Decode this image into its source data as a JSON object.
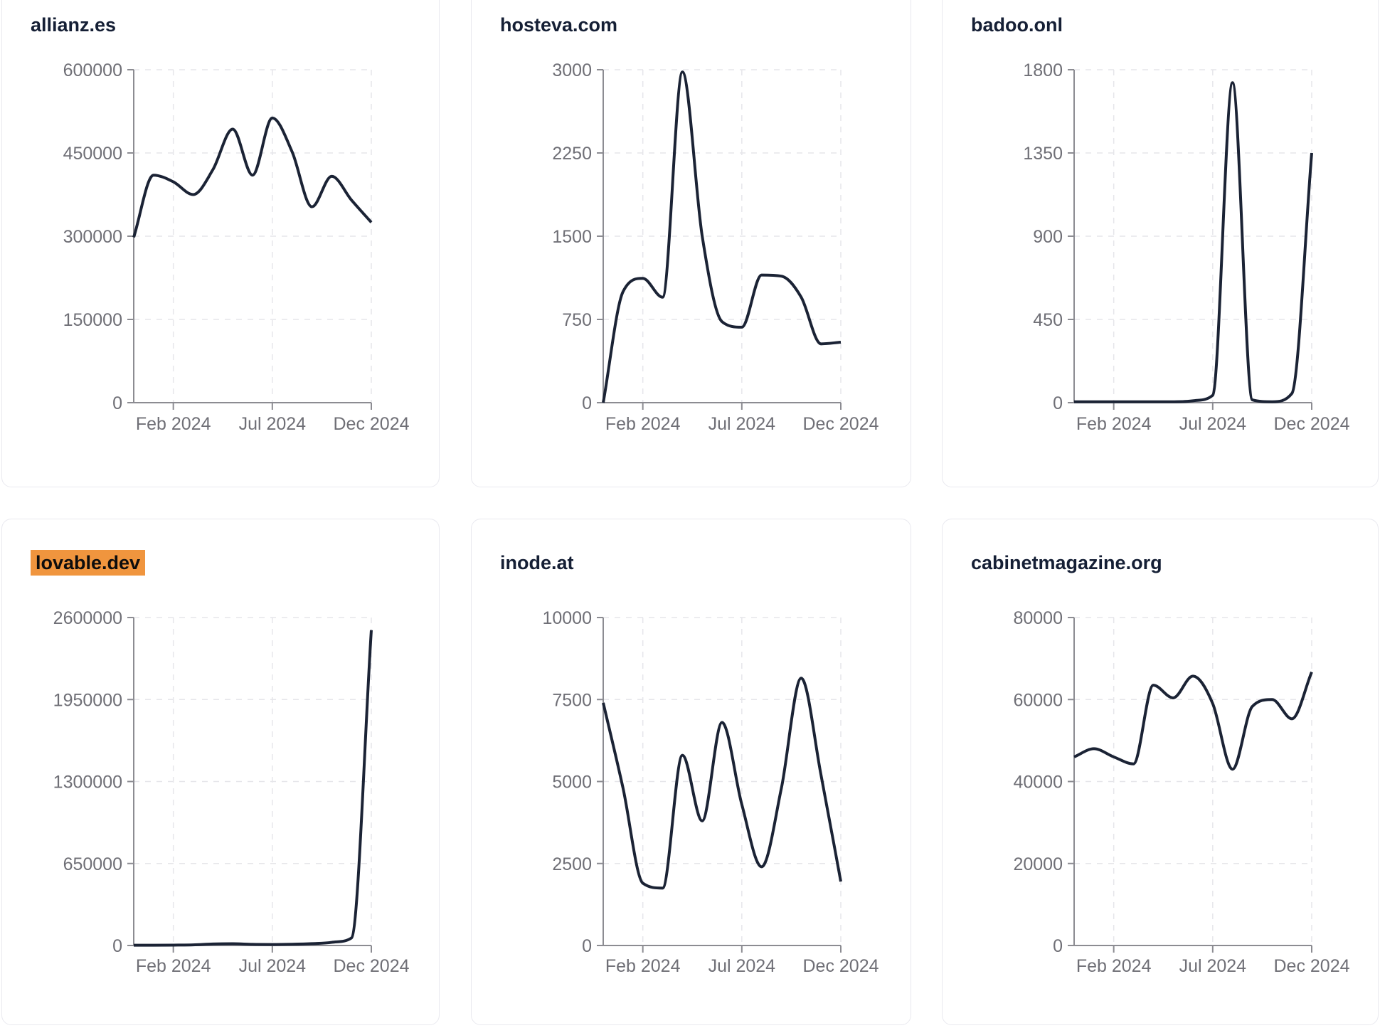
{
  "style": {
    "line_color": "#1b2335",
    "axis_color": "#8c8c92",
    "grid_color": "#e6e6ea",
    "tick_label_color": "#6f6f76",
    "title_color": "#151f35",
    "highlight_color": "#f0953e",
    "card_border_color": "#e9e9ef",
    "card_background": "#ffffff"
  },
  "months": [
    "Dec 2023",
    "Jan 2024",
    "Feb 2024",
    "Mar 2024",
    "Apr 2024",
    "May 2024",
    "Jun 2024",
    "Jul 2024",
    "Aug 2024",
    "Sep 2024",
    "Oct 2024",
    "Nov 2024",
    "Dec 2024"
  ],
  "xticks": [
    {
      "label": "Feb 2024",
      "month_index": 2
    },
    {
      "label": "Jul 2024",
      "month_index": 7
    },
    {
      "label": "Dec 2024",
      "month_index": 12
    }
  ],
  "chart_data": [
    {
      "type": "line",
      "title": "allianz.es",
      "title_highlighted": false,
      "x": [
        "Dec 2023",
        "Jan 2024",
        "Feb 2024",
        "Mar 2024",
        "Apr 2024",
        "May 2024",
        "Jun 2024",
        "Jul 2024",
        "Aug 2024",
        "Sep 2024",
        "Oct 2024",
        "Nov 2024",
        "Dec 2024"
      ],
      "values": [
        298000,
        410000,
        398000,
        375000,
        420000,
        493000,
        410000,
        513000,
        452000,
        353000,
        408000,
        365000,
        325000
      ],
      "ylim": [
        0,
        600000
      ],
      "yticks": [
        0,
        150000,
        300000,
        450000,
        600000
      ],
      "xtick_labels": [
        "Feb 2024",
        "Jul 2024",
        "Dec 2024"
      ],
      "grid": true,
      "legend": false
    },
    {
      "type": "line",
      "title": "hosteva.com",
      "title_highlighted": false,
      "x": [
        "Dec 2023",
        "Jan 2024",
        "Feb 2024",
        "Mar 2024",
        "Apr 2024",
        "May 2024",
        "Jun 2024",
        "Jul 2024",
        "Aug 2024",
        "Sep 2024",
        "Oct 2024",
        "Nov 2024",
        "Dec 2024"
      ],
      "values": [
        0,
        1000,
        1120,
        950,
        2980,
        1500,
        730,
        680,
        1150,
        1140,
        950,
        530,
        545
      ],
      "ylim": [
        0,
        3000
      ],
      "yticks": [
        0,
        750,
        1500,
        2250,
        3000
      ],
      "xtick_labels": [
        "Feb 2024",
        "Jul 2024",
        "Dec 2024"
      ],
      "grid": true,
      "legend": false
    },
    {
      "type": "line",
      "title": "badoo.onl",
      "title_highlighted": false,
      "x": [
        "Dec 2023",
        "Jan 2024",
        "Feb 2024",
        "Mar 2024",
        "Apr 2024",
        "May 2024",
        "Jun 2024",
        "Jul 2024",
        "Aug 2024",
        "Sep 2024",
        "Oct 2024",
        "Nov 2024",
        "Dec 2024"
      ],
      "values": [
        5,
        5,
        5,
        5,
        5,
        5,
        10,
        40,
        1730,
        15,
        5,
        50,
        1350
      ],
      "ylim": [
        0,
        1800
      ],
      "yticks": [
        0,
        450,
        900,
        1350,
        1800
      ],
      "xtick_labels": [
        "Feb 2024",
        "Jul 2024",
        "Dec 2024"
      ],
      "grid": true,
      "legend": false
    },
    {
      "type": "line",
      "title": "lovable.dev",
      "title_highlighted": true,
      "x": [
        "Dec 2023",
        "Jan 2024",
        "Feb 2024",
        "Mar 2024",
        "Apr 2024",
        "May 2024",
        "Jun 2024",
        "Jul 2024",
        "Aug 2024",
        "Sep 2024",
        "Oct 2024",
        "Nov 2024",
        "Dec 2024"
      ],
      "values": [
        2000,
        2000,
        3000,
        5000,
        12000,
        14000,
        9000,
        8000,
        10000,
        15000,
        25000,
        60000,
        2500000
      ],
      "ylim": [
        0,
        2600000
      ],
      "yticks": [
        0,
        650000,
        1300000,
        1950000,
        2600000
      ],
      "xtick_labels": [
        "Feb 2024",
        "Jul 2024",
        "Dec 2024"
      ],
      "grid": true,
      "legend": false
    },
    {
      "type": "line",
      "title": "inode.at",
      "title_highlighted": false,
      "x": [
        "Dec 2023",
        "Jan 2024",
        "Feb 2024",
        "Mar 2024",
        "Apr 2024",
        "May 2024",
        "Jun 2024",
        "Jul 2024",
        "Aug 2024",
        "Sep 2024",
        "Oct 2024",
        "Nov 2024",
        "Dec 2024"
      ],
      "values": [
        7400,
        4800,
        1900,
        1750,
        5800,
        3800,
        6800,
        4300,
        2400,
        4800,
        8150,
        5200,
        1950
      ],
      "ylim": [
        0,
        10000
      ],
      "yticks": [
        0,
        2500,
        5000,
        7500,
        10000
      ],
      "xtick_labels": [
        "Feb 2024",
        "Jul 2024",
        "Dec 2024"
      ],
      "grid": true,
      "legend": false
    },
    {
      "type": "line",
      "title": "cabinetmagazine.org",
      "title_highlighted": false,
      "x": [
        "Dec 2023",
        "Jan 2024",
        "Feb 2024",
        "Mar 2024",
        "Apr 2024",
        "May 2024",
        "Jun 2024",
        "Jul 2024",
        "Aug 2024",
        "Sep 2024",
        "Oct 2024",
        "Nov 2024",
        "Dec 2024"
      ],
      "values": [
        46000,
        48000,
        46000,
        44300,
        63500,
        60400,
        65700,
        59000,
        43000,
        58300,
        60000,
        55300,
        66700
      ],
      "ylim": [
        0,
        80000
      ],
      "yticks": [
        0,
        20000,
        40000,
        60000,
        80000
      ],
      "xtick_labels": [
        "Feb 2024",
        "Jul 2024",
        "Dec 2024"
      ],
      "grid": true,
      "legend": false
    }
  ]
}
